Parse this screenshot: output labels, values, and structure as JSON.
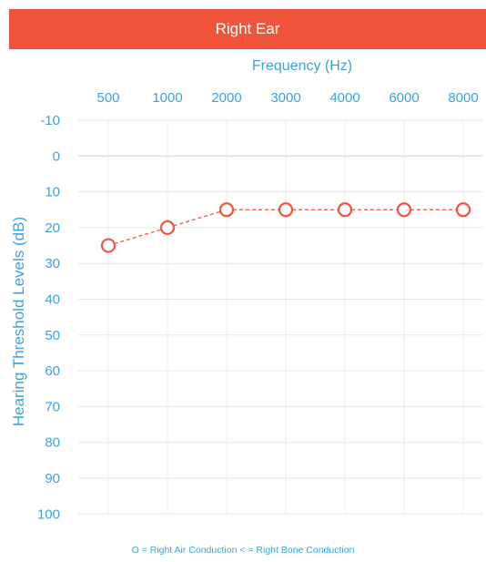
{
  "header": {
    "title": "Right Ear"
  },
  "legend": {
    "text": "O = Right Air Conduction   < = Right Bone Conduction"
  },
  "chart_data": {
    "type": "line",
    "title": "Right Ear",
    "xlabel": "Frequency (Hz)",
    "ylabel": "Hearing Threshold Levels (dB)",
    "categories": [
      "500",
      "1000",
      "2000",
      "3000",
      "4000",
      "6000",
      "8000"
    ],
    "y_ticks": [
      "-10",
      "0",
      "10",
      "20",
      "30",
      "40",
      "50",
      "60",
      "70",
      "80",
      "90",
      "100"
    ],
    "ylim": [
      -10,
      100
    ],
    "y_inverted": true,
    "grid": true,
    "series": [
      {
        "name": "Right Air Conduction",
        "marker": "circle",
        "line_style": "dashed",
        "color": "#f1543c",
        "values": [
          25,
          20,
          15,
          15,
          15,
          15,
          15
        ]
      }
    ]
  }
}
